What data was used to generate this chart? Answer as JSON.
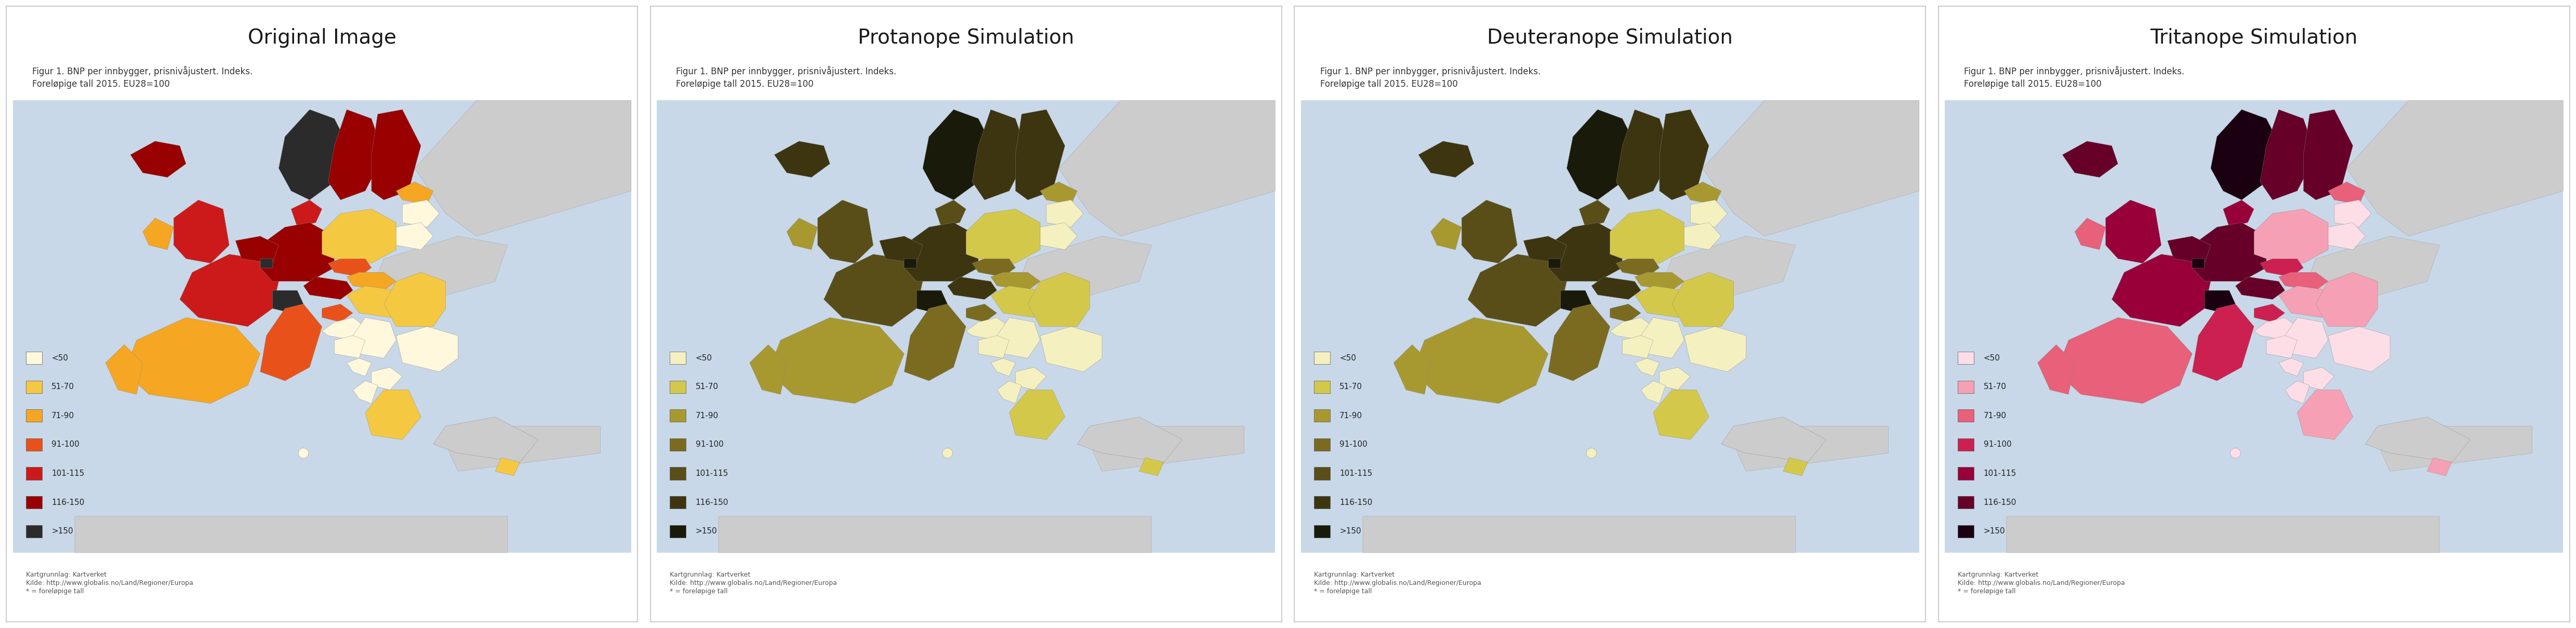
{
  "panels": [
    {
      "title": "Original Image",
      "subtitle": "Figur 1. BNP per innbygger, prisnivåjustert. Indeks.\nForeløpige tall 2015. EU28=100",
      "legend_colors": [
        "#FFF8DC",
        "#F5C842",
        "#F5A623",
        "#E8521A",
        "#CC1A1A",
        "#990000",
        "#2B2B2B"
      ],
      "legend_labels": [
        "<50",
        "51-70",
        "71-90",
        "91-100",
        "101-115",
        "116-150",
        ">150"
      ],
      "footer": "Kartgrunnlag: Kartverket\nKilde: http://www.globalis.no/Land/Regioner/Europa\n* = foreløpige tall"
    },
    {
      "title": "Protanope Simulation",
      "subtitle": "Figur 1. BNP per innbygger, prisnivåjustert. Indeks.\nForeløpige tall 2015. EU28=100",
      "legend_colors": [
        "#F5F0C0",
        "#D4C84A",
        "#A89830",
        "#7A6B20",
        "#5A4E18",
        "#3D3510",
        "#1A1A0A"
      ],
      "legend_labels": [
        "<50",
        "51-70",
        "71-90",
        "91-100",
        "101-115",
        "116-150",
        ">150"
      ],
      "footer": "Kartgrunnlag: Kartverket\nKilde: http://www.globalis.no/Land/Regioner/Europa\n* = foreløpige tall"
    },
    {
      "title": "Deuteranope Simulation",
      "subtitle": "Figur 1. BNP per innbygger, prisnivåjustert. Indeks.\nForeløpige tall 2015. EU28=100",
      "legend_colors": [
        "#F5F0C0",
        "#D4C84A",
        "#A89830",
        "#7A6B20",
        "#5A4E18",
        "#3D3510",
        "#1A1A0A"
      ],
      "legend_labels": [
        "<50",
        "51-70",
        "71-90",
        "91-100",
        "101-115",
        "116-150",
        ">150"
      ],
      "footer": "Kartgrunnlag: Kartverket\nKilde: http://www.globalis.no/Land/Regioner/Europa\n* = foreløpige tall"
    },
    {
      "title": "Tritanope Simulation",
      "subtitle": "Figur 1. BNP per innbygger, prisnivåjustert. Indeks.\nForeløpige tall 2015. EU28=100",
      "legend_colors": [
        "#FDDDE6",
        "#F5A0B5",
        "#E8607A",
        "#CC2050",
        "#99003A",
        "#660028",
        "#1A0010"
      ],
      "legend_labels": [
        "<50",
        "51-70",
        "71-90",
        "91-100",
        "101-115",
        "116-150",
        ">150"
      ],
      "footer": "Kartgrunnlag: Kartverket\nKilde: http://www.globalis.no/Land/Regioner/Europa\n* = foreløpige tall"
    }
  ],
  "bg_color": "#FFFFFF",
  "panel_border_color": "#CCCCCC",
  "map_bg": "#E8E8E8",
  "title_fontsize": 28,
  "subtitle_fontsize": 12,
  "legend_fontsize": 11,
  "footer_fontsize": 9
}
